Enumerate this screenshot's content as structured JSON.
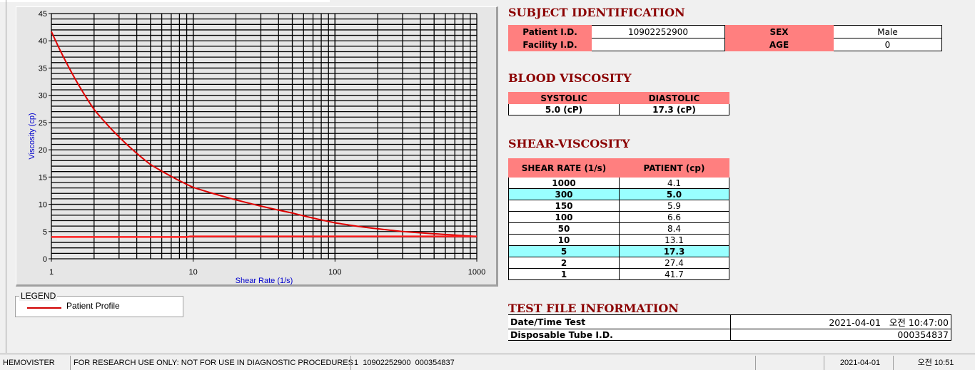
{
  "chart_data": {
    "type": "line",
    "xlabel": "Shear Rate (1/s)",
    "ylabel": "Viscosity (cp)",
    "xscale": "log",
    "xlim": [
      1,
      1000
    ],
    "ylim": [
      0,
      45
    ],
    "xticks": [
      "1",
      "10",
      "100",
      "1000"
    ],
    "yticks": [
      "0",
      "5",
      "10",
      "15",
      "20",
      "25",
      "30",
      "35",
      "40",
      "45"
    ],
    "grid": true,
    "legend_title": "LEGEND",
    "legend_position": "bottom-left",
    "series": [
      {
        "name": "Patient Profile",
        "color": "#e00000",
        "x": [
          1,
          2,
          5,
          10,
          50,
          100,
          150,
          300,
          1000
        ],
        "y": [
          41.7,
          27.4,
          17.3,
          13.1,
          8.4,
          6.6,
          5.9,
          5.0,
          4.1
        ]
      },
      {
        "color": "#ff2020",
        "x": [
          1,
          9,
          9.5,
          1000
        ],
        "y": [
          4.0,
          4.0,
          4.1,
          4.1
        ]
      }
    ]
  },
  "subject": {
    "title": "SUBJECT IDENTIFICATION",
    "patient_id_label": "Patient I.D.",
    "patient_id": "10902252900",
    "sex_label": "SEX",
    "sex": "Male",
    "facility_label": "Facility I.D.",
    "facility": "",
    "age_label": "AGE",
    "age": "0"
  },
  "blood": {
    "title": "BLOOD VISCOSITY",
    "systolic_label": "SYSTOLIC",
    "diastolic_label": "DIASTOLIC",
    "systolic": "5.0 (cP)",
    "diastolic": "17.3 (cP)"
  },
  "shear": {
    "title": "SHEAR-VISCOSITY",
    "col1": "SHEAR RATE (1/s)",
    "col2": "PATIENT (cp)",
    "rows": [
      [
        "1000",
        "4.1",
        false
      ],
      [
        "300",
        "5.0",
        true
      ],
      [
        "150",
        "5.9",
        false
      ],
      [
        "100",
        "6.6",
        false
      ],
      [
        "50",
        "8.4",
        false
      ],
      [
        "10",
        "13.1",
        false
      ],
      [
        "5",
        "17.3",
        true
      ],
      [
        "2",
        "27.4",
        false
      ],
      [
        "1",
        "41.7",
        false
      ]
    ],
    "highlight_color": "#99ffff"
  },
  "testfile": {
    "title": "TEST FILE INFORMATION",
    "date_label": "Date/Time Test",
    "date": "2021-04-01   오전 10:47:00",
    "tube_label": "Disposable Tube I.D.",
    "tube": "000354837"
  },
  "status": {
    "app": "HEMOVISTER",
    "notice": "FOR RESEARCH USE ONLY: NOT FOR USE IN DIAGNOSTIC PROCEDURES",
    "file": "1  10902252900  000354837",
    "blank": "",
    "date": "2021-04-01",
    "time": "오전 10:51"
  }
}
